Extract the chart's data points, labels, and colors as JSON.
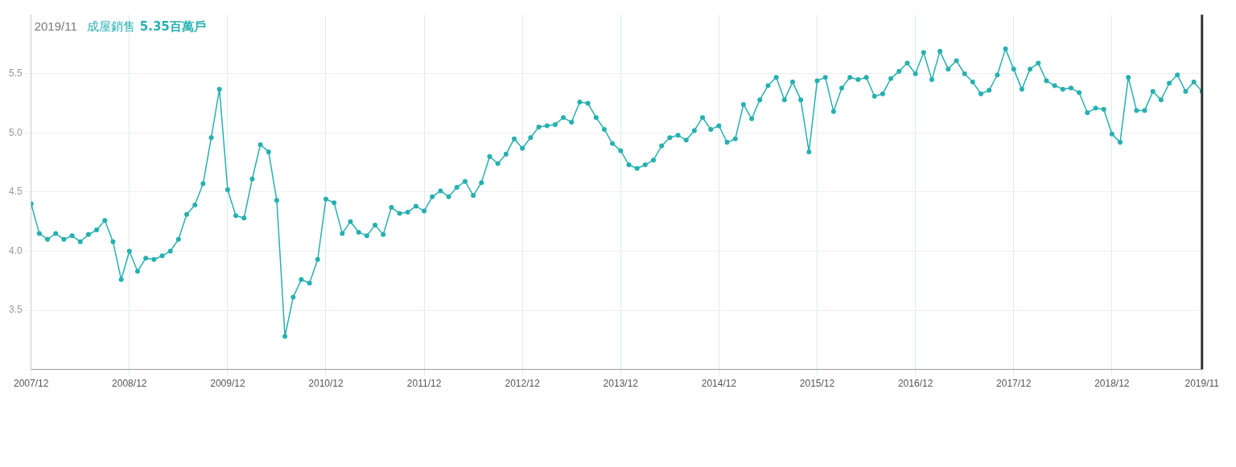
{
  "chart_data": {
    "type": "line",
    "title": "2019/11",
    "annotations": [
      "5.35百萬戶"
    ],
    "legend": "top left",
    "marker": "circle",
    "line_style": "solid",
    "grid": true,
    "x": [
      "2007-12",
      "2008-01",
      "2008-02",
      "2008-03",
      "2008-04",
      "2008-05",
      "2008-06",
      "2008-07",
      "2008-08",
      "2008-09",
      "2008-10",
      "2008-11",
      "2008-12",
      "2009-01",
      "2009-02",
      "2009-03",
      "2009-04",
      "2009-05",
      "2009-06",
      "2009-07",
      "2009-08",
      "2009-09",
      "2009-10",
      "2009-11",
      "2009-12",
      "2010-01",
      "2010-02",
      "2010-03",
      "2010-04",
      "2010-05",
      "2010-06",
      "2010-07",
      "2010-08",
      "2010-09",
      "2010-10",
      "2010-11",
      "2010-12",
      "2011-01",
      "2011-02",
      "2011-03",
      "2011-04",
      "2011-05",
      "2011-06",
      "2011-07",
      "2011-08",
      "2011-09",
      "2011-10",
      "2011-11",
      "2011-12",
      "2012-01",
      "2012-02",
      "2012-03",
      "2012-04",
      "2012-05",
      "2012-06",
      "2012-07",
      "2012-08",
      "2012-09",
      "2012-10",
      "2012-11",
      "2012-12",
      "2013-01",
      "2013-02",
      "2013-03",
      "2013-04",
      "2013-05",
      "2013-06",
      "2013-07",
      "2013-08",
      "2013-09",
      "2013-10",
      "2013-11",
      "2013-12",
      "2014-01",
      "2014-02",
      "2014-03",
      "2014-04",
      "2014-05",
      "2014-06",
      "2014-07",
      "2014-08",
      "2014-09",
      "2014-10",
      "2014-11",
      "2014-12",
      "2015-01",
      "2015-02",
      "2015-03",
      "2015-04",
      "2015-05",
      "2015-06",
      "2015-07",
      "2015-08",
      "2015-09",
      "2015-10",
      "2015-11",
      "2015-12",
      "2016-01",
      "2016-02",
      "2016-03",
      "2016-04",
      "2016-05",
      "2016-06",
      "2016-07",
      "2016-08",
      "2016-09",
      "2016-10",
      "2016-11",
      "2016-12",
      "2017-01",
      "2017-02",
      "2017-03",
      "2017-04",
      "2017-05",
      "2017-06",
      "2017-07",
      "2017-08",
      "2017-09",
      "2017-10",
      "2017-11",
      "2017-12",
      "2018-01",
      "2018-02",
      "2018-03",
      "2018-04",
      "2018-05",
      "2018-06",
      "2018-07",
      "2018-08",
      "2018-09",
      "2018-10",
      "2018-11",
      "2018-12",
      "2019-01",
      "2019-02",
      "2019-03",
      "2019-04",
      "2019-05",
      "2019-06",
      "2019-07",
      "2019-08",
      "2019-09",
      "2019-10",
      "2019-11"
    ],
    "series": [
      {
        "name": "成屋銷售",
        "color": "#26b0b0",
        "values": [
          4.4,
          4.15,
          4.1,
          4.15,
          4.1,
          4.13,
          4.08,
          4.14,
          4.18,
          4.26,
          4.08,
          3.76,
          4.0,
          3.83,
          3.94,
          3.93,
          3.96,
          4.0,
          4.1,
          4.31,
          4.39,
          4.57,
          4.96,
          5.37,
          4.52,
          4.3,
          4.28,
          4.61,
          4.9,
          4.84,
          4.43,
          3.28,
          3.61,
          3.76,
          3.73,
          3.93,
          4.44,
          4.41,
          4.15,
          4.25,
          4.16,
          4.13,
          4.22,
          4.14,
          4.37,
          4.32,
          4.33,
          4.38,
          4.34,
          4.46,
          4.51,
          4.46,
          4.54,
          4.59,
          4.47,
          4.58,
          4.8,
          4.74,
          4.82,
          4.95,
          4.87,
          4.96,
          5.05,
          5.06,
          5.07,
          5.13,
          5.09,
          5.26,
          5.25,
          5.13,
          5.03,
          4.91,
          4.85,
          4.73,
          4.7,
          4.73,
          4.77,
          4.89,
          4.96,
          4.98,
          4.94,
          5.02,
          5.13,
          5.03,
          5.06,
          4.92,
          4.95,
          5.24,
          5.12,
          5.28,
          5.4,
          5.47,
          5.28,
          5.43,
          5.28,
          4.84,
          5.44,
          5.47,
          5.18,
          5.38,
          5.47,
          5.45,
          5.47,
          5.31,
          5.33,
          5.46,
          5.52,
          5.59,
          5.5,
          5.68,
          5.45,
          5.69,
          5.54,
          5.61,
          5.5,
          5.43,
          5.33,
          5.36,
          5.49,
          5.71,
          5.54,
          5.37,
          5.54,
          5.59,
          5.44,
          5.4,
          5.37,
          5.38,
          5.34,
          5.17,
          5.21,
          5.2,
          4.99,
          4.92,
          5.47,
          5.19,
          5.19,
          5.35,
          5.28,
          5.42,
          5.49,
          5.35,
          5.43,
          5.35
        ]
      }
    ],
    "xlim": [
      "2007-12",
      "2019-11"
    ],
    "xticks": [
      {
        "value": "2007-12",
        "label": "2007/12"
      },
      {
        "value": "2008-12",
        "label": "2008/12"
      },
      {
        "value": "2009-12",
        "label": "2009/12"
      },
      {
        "value": "2010-12",
        "label": "2010/12"
      },
      {
        "value": "2011-12",
        "label": "2011/12"
      },
      {
        "value": "2012-12",
        "label": "2012/12"
      },
      {
        "value": "2013-12",
        "label": "2013/12"
      },
      {
        "value": "2014-12",
        "label": "2014/12"
      },
      {
        "value": "2015-12",
        "label": "2015/12"
      },
      {
        "value": "2016-12",
        "label": "2016/12"
      },
      {
        "value": "2017-12",
        "label": "2017/12"
      },
      {
        "value": "2018-12",
        "label": "2018/12"
      },
      {
        "value": "2019-11",
        "label": "2019/11"
      }
    ],
    "ylim": [
      3.0,
      6.0
    ],
    "yticks": [
      3.5,
      {
        "value": 4,
        "label": "4.0"
      },
      4.5,
      {
        "value": 5,
        "label": "5.0"
      },
      5.5
    ],
    "ref_lines": [
      {
        "axis": "x",
        "value": "2019-11",
        "color": "#333333"
      }
    ]
  }
}
